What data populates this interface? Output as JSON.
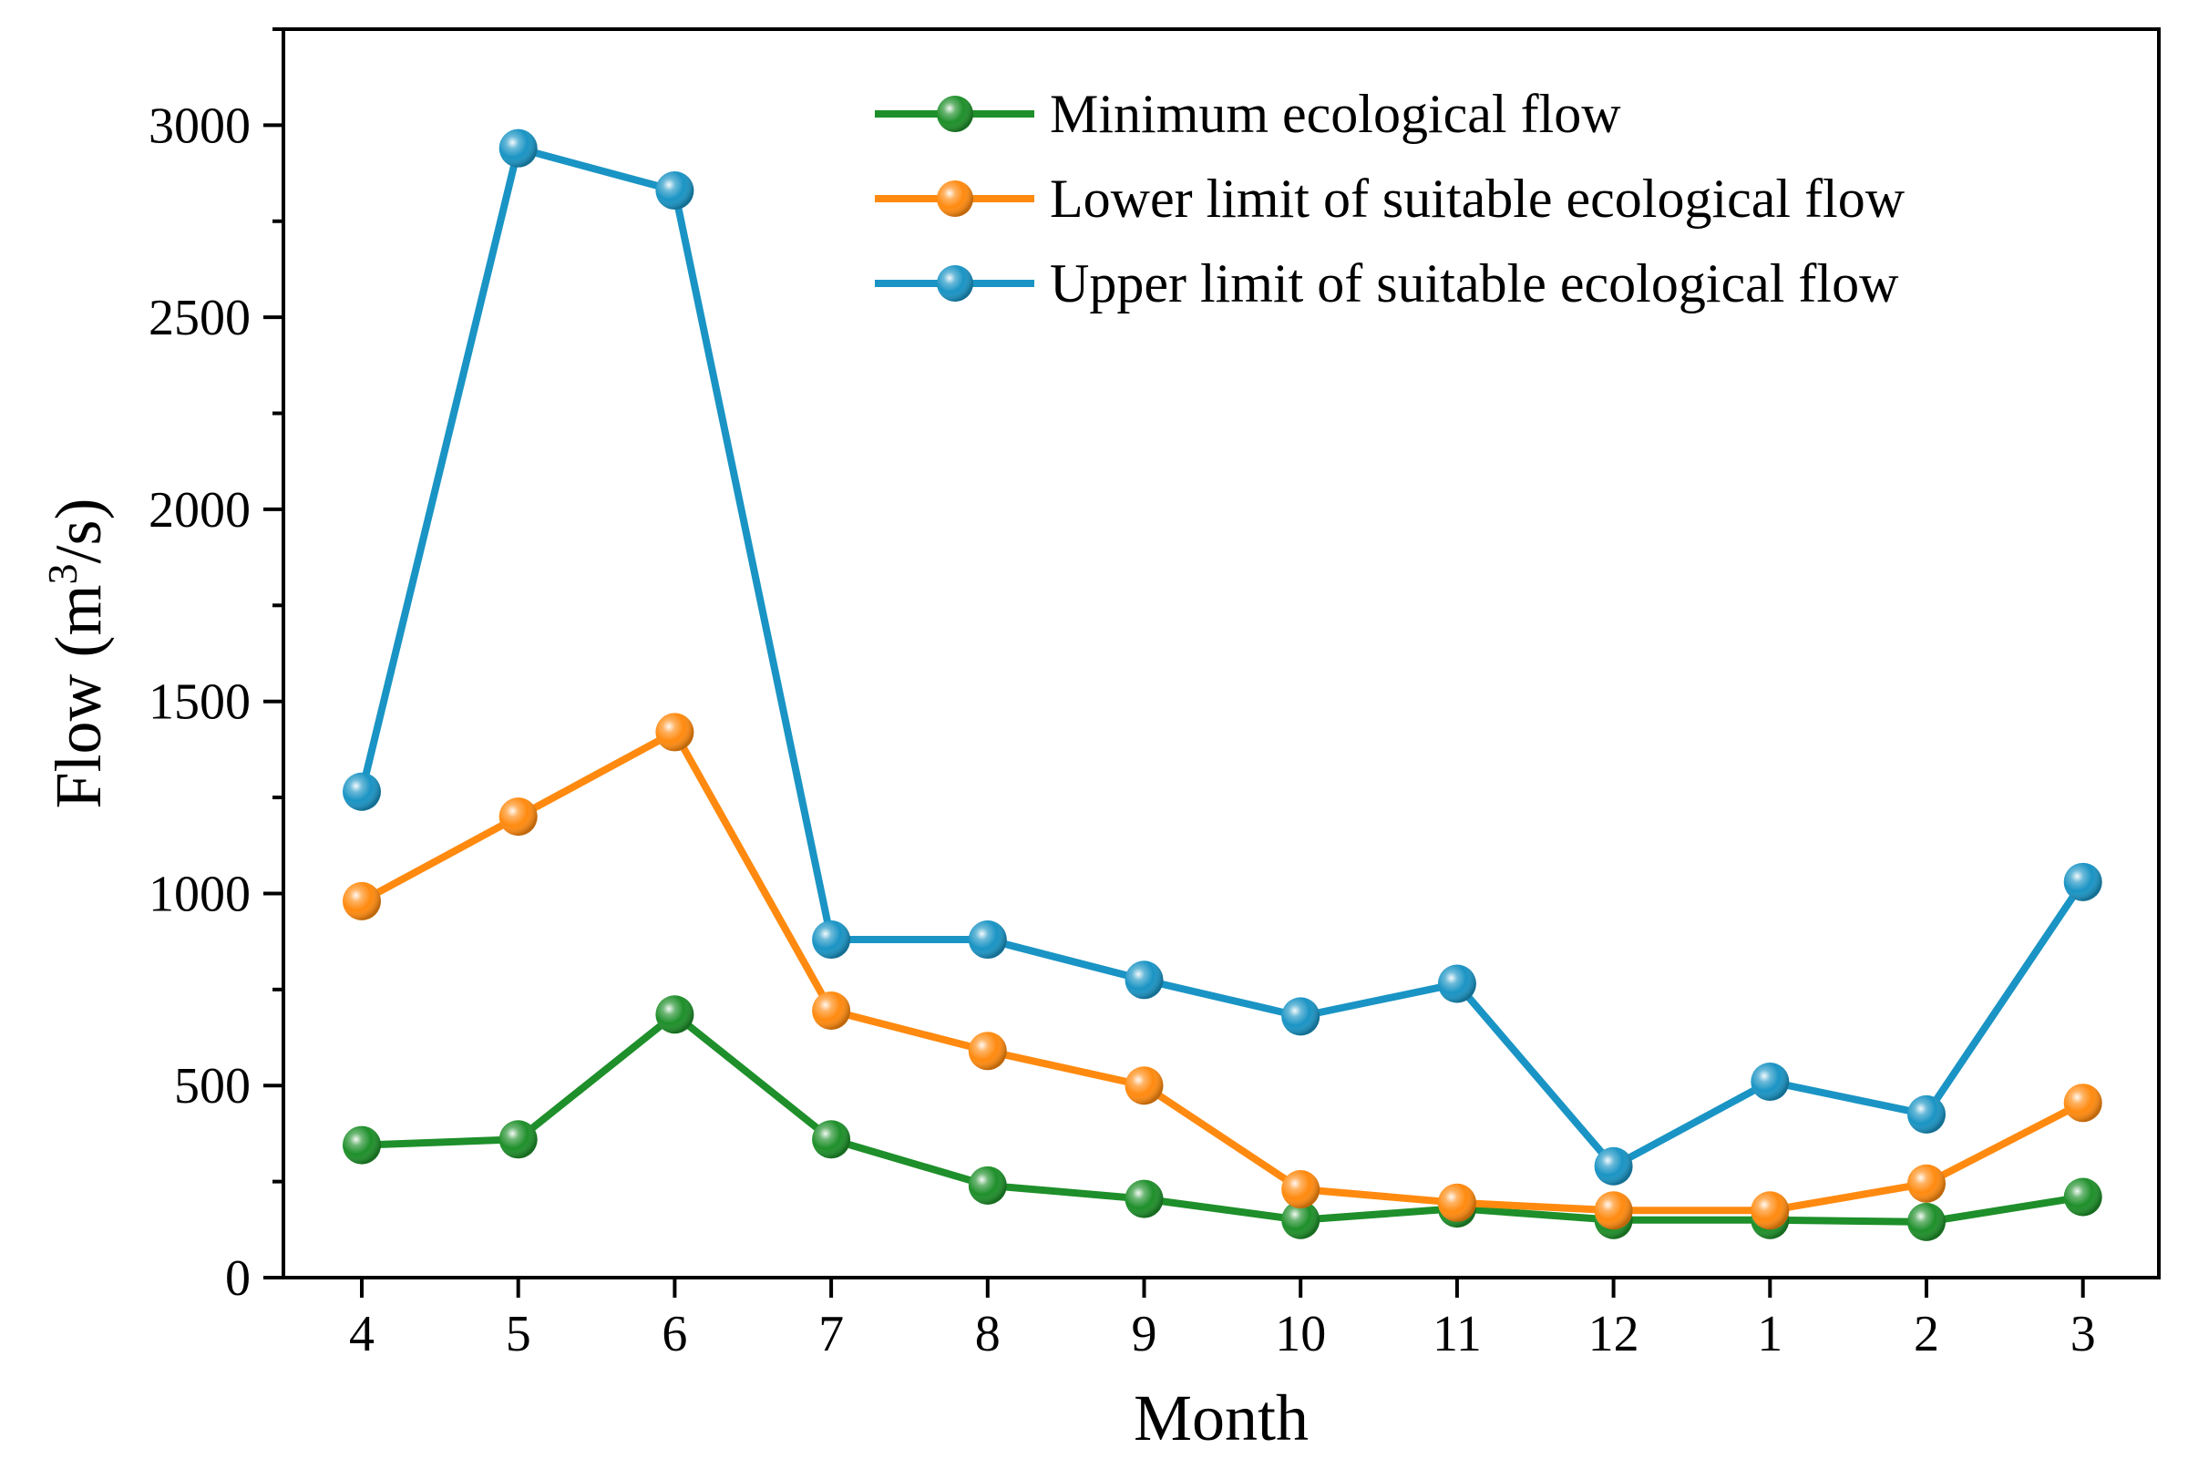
{
  "chart_data": {
    "type": "line",
    "title": "",
    "xlabel": "Month",
    "ylabel": "Flow (m",
    "ylabel_superscript": "3",
    "ylabel_suffix": "/s)",
    "categories": [
      "4",
      "5",
      "6",
      "7",
      "8",
      "9",
      "10",
      "11",
      "12",
      "1",
      "2",
      "3"
    ],
    "ylim": [
      0,
      3250
    ],
    "yticks": [
      "0",
      "500",
      "1000",
      "1500",
      "2000",
      "2500",
      "3000"
    ],
    "legend_position": "top-right",
    "grid": false,
    "series": [
      {
        "name": "Minimum ecological flow",
        "color": "#1e8f2a",
        "values": [
          345,
          360,
          685,
          360,
          240,
          205,
          150,
          180,
          150,
          150,
          145,
          210
        ]
      },
      {
        "name": "Lower limit of suitable ecological flow",
        "color": "#ff8a0f",
        "values": [
          980,
          1200,
          1420,
          695,
          590,
          500,
          230,
          195,
          175,
          175,
          245,
          455
        ]
      },
      {
        "name": "Upper limit of suitable ecological flow",
        "color": "#1a94c4",
        "values": [
          1265,
          2940,
          2830,
          880,
          880,
          775,
          680,
          765,
          290,
          510,
          425,
          1030
        ]
      }
    ]
  }
}
